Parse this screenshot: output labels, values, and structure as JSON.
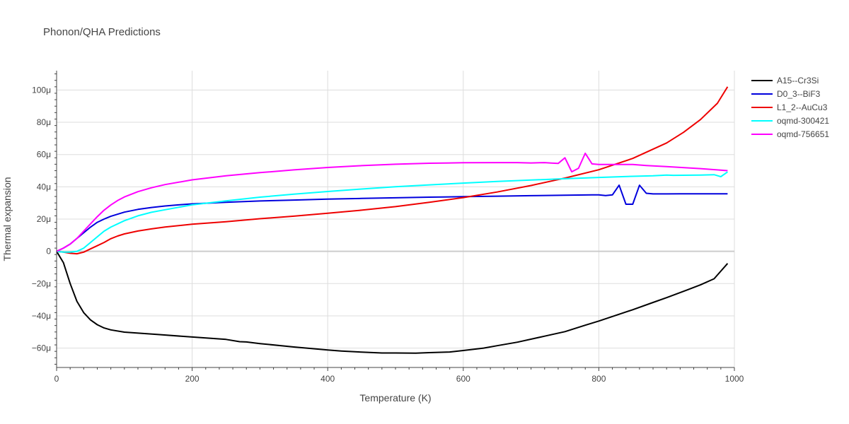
{
  "chart_data": {
    "type": "line",
    "title": "Phonon/QHA Predictions",
    "xlabel": "Temperature (K)",
    "ylabel": "Thermal expansion",
    "xlim": [
      0,
      1000
    ],
    "ylim": [
      -72,
      112
    ],
    "y_unit_suffix": "μ",
    "x_ticks": [
      0,
      200,
      400,
      600,
      800,
      1000
    ],
    "y_ticks": [
      -60,
      -40,
      -20,
      0,
      20,
      40,
      60,
      80,
      100
    ],
    "grid": true,
    "legend_position": "top-right",
    "series": [
      {
        "name": "A15--Cr3Si",
        "color": "#000000",
        "points": [
          [
            0,
            0
          ],
          [
            10,
            -7
          ],
          [
            20,
            -20
          ],
          [
            30,
            -31
          ],
          [
            40,
            -38
          ],
          [
            50,
            -42.5
          ],
          [
            60,
            -45.5
          ],
          [
            70,
            -47.5
          ],
          [
            80,
            -48.7
          ],
          [
            100,
            -50.1
          ],
          [
            150,
            -51.6
          ],
          [
            200,
            -53.1
          ],
          [
            250,
            -54.6
          ],
          [
            270,
            -56
          ],
          [
            280,
            -56.2
          ],
          [
            300,
            -57.2
          ],
          [
            350,
            -59.3
          ],
          [
            400,
            -61.2
          ],
          [
            420,
            -61.8
          ],
          [
            450,
            -62.5
          ],
          [
            480,
            -63
          ],
          [
            500,
            -63
          ],
          [
            530,
            -63.1
          ],
          [
            550,
            -62.8
          ],
          [
            580,
            -62.4
          ],
          [
            600,
            -61.5
          ],
          [
            630,
            -60
          ],
          [
            650,
            -58.5
          ],
          [
            680,
            -56.3
          ],
          [
            720,
            -52.6
          ],
          [
            750,
            -49.8
          ],
          [
            780,
            -45.8
          ],
          [
            800,
            -43.2
          ],
          [
            830,
            -39
          ],
          [
            850,
            -36.2
          ],
          [
            880,
            -31.7
          ],
          [
            900,
            -28.7
          ],
          [
            930,
            -24
          ],
          [
            950,
            -20.8
          ],
          [
            970,
            -17
          ],
          [
            990,
            -7.5
          ]
        ]
      },
      {
        "name": "D0_3--BiF3",
        "color": "#0000dd",
        "points": [
          [
            0,
            0
          ],
          [
            10,
            2
          ],
          [
            20,
            4.5
          ],
          [
            30,
            8
          ],
          [
            40,
            11.5
          ],
          [
            50,
            15
          ],
          [
            60,
            18
          ],
          [
            70,
            20
          ],
          [
            80,
            21.7
          ],
          [
            100,
            24.3
          ],
          [
            120,
            26
          ],
          [
            140,
            27.2
          ],
          [
            160,
            28.1
          ],
          [
            180,
            28.8
          ],
          [
            200,
            29.4
          ],
          [
            250,
            30.4
          ],
          [
            300,
            31.2
          ],
          [
            350,
            31.8
          ],
          [
            400,
            32.4
          ],
          [
            450,
            32.8
          ],
          [
            500,
            33.2
          ],
          [
            550,
            33.6
          ],
          [
            600,
            33.9
          ],
          [
            650,
            34.2
          ],
          [
            700,
            34.5
          ],
          [
            750,
            34.8
          ],
          [
            790,
            35
          ],
          [
            800,
            35
          ],
          [
            810,
            34.6
          ],
          [
            820,
            35
          ],
          [
            830,
            41
          ],
          [
            840,
            29.2
          ],
          [
            850,
            29.2
          ],
          [
            860,
            41
          ],
          [
            870,
            36
          ],
          [
            880,
            35.6
          ],
          [
            900,
            35.6
          ],
          [
            920,
            35.7
          ],
          [
            950,
            35.7
          ],
          [
            990,
            35.7
          ]
        ]
      },
      {
        "name": "L1_2--AuCu3",
        "color": "#ee0000",
        "points": [
          [
            0,
            0
          ],
          [
            10,
            -0.5
          ],
          [
            20,
            -1.2
          ],
          [
            30,
            -1.5
          ],
          [
            40,
            -0.5
          ],
          [
            50,
            1.5
          ],
          [
            60,
            3.5
          ],
          [
            70,
            5.5
          ],
          [
            80,
            7.8
          ],
          [
            90,
            9.5
          ],
          [
            100,
            10.8
          ],
          [
            120,
            12.6
          ],
          [
            140,
            13.9
          ],
          [
            160,
            15.1
          ],
          [
            200,
            16.8
          ],
          [
            250,
            18.4
          ],
          [
            300,
            20.2
          ],
          [
            350,
            21.8
          ],
          [
            400,
            23.6
          ],
          [
            450,
            25.5
          ],
          [
            500,
            27.7
          ],
          [
            550,
            30.4
          ],
          [
            600,
            33.3
          ],
          [
            650,
            36.8
          ],
          [
            700,
            40.8
          ],
          [
            750,
            45.4
          ],
          [
            800,
            50.6
          ],
          [
            850,
            57.6
          ],
          [
            900,
            67.2
          ],
          [
            925,
            73.8
          ],
          [
            950,
            81.7
          ],
          [
            975,
            91.8
          ],
          [
            990,
            102
          ]
        ]
      },
      {
        "name": "oqmd-300421",
        "color": "#00ffff",
        "points": [
          [
            0,
            0
          ],
          [
            10,
            -0.5
          ],
          [
            20,
            -0.5
          ],
          [
            30,
            0
          ],
          [
            40,
            2
          ],
          [
            50,
            5.5
          ],
          [
            60,
            9
          ],
          [
            70,
            12.5
          ],
          [
            80,
            15
          ],
          [
            100,
            19
          ],
          [
            120,
            22
          ],
          [
            140,
            24.2
          ],
          [
            160,
            25.8
          ],
          [
            200,
            28.8
          ],
          [
            250,
            31.3
          ],
          [
            300,
            33.6
          ],
          [
            350,
            35.4
          ],
          [
            400,
            37.1
          ],
          [
            450,
            38.6
          ],
          [
            500,
            40
          ],
          [
            550,
            41.2
          ],
          [
            600,
            42.3
          ],
          [
            650,
            43.3
          ],
          [
            700,
            44.2
          ],
          [
            750,
            45
          ],
          [
            800,
            45.8
          ],
          [
            850,
            46.5
          ],
          [
            880,
            46.8
          ],
          [
            900,
            47.3
          ],
          [
            910,
            47.1
          ],
          [
            950,
            47.3
          ],
          [
            970,
            47.5
          ],
          [
            980,
            46.3
          ],
          [
            990,
            49.2
          ]
        ]
      },
      {
        "name": "oqmd-756651",
        "color": "#ff00ff",
        "points": [
          [
            0,
            0
          ],
          [
            10,
            2
          ],
          [
            20,
            4.5
          ],
          [
            30,
            8
          ],
          [
            40,
            12.5
          ],
          [
            50,
            17
          ],
          [
            60,
            21.5
          ],
          [
            70,
            25.5
          ],
          [
            80,
            28.7
          ],
          [
            90,
            31.5
          ],
          [
            100,
            33.7
          ],
          [
            120,
            37
          ],
          [
            140,
            39.4
          ],
          [
            160,
            41.4
          ],
          [
            200,
            44.3
          ],
          [
            250,
            46.8
          ],
          [
            300,
            48.8
          ],
          [
            350,
            50.5
          ],
          [
            400,
            52
          ],
          [
            450,
            53.1
          ],
          [
            500,
            54
          ],
          [
            550,
            54.6
          ],
          [
            600,
            54.9
          ],
          [
            650,
            55
          ],
          [
            680,
            55
          ],
          [
            700,
            54.8
          ],
          [
            720,
            55
          ],
          [
            730,
            54.7
          ],
          [
            740,
            54.5
          ],
          [
            750,
            58
          ],
          [
            760,
            49.3
          ],
          [
            770,
            51.5
          ],
          [
            780,
            60.8
          ],
          [
            790,
            54.2
          ],
          [
            800,
            53.8
          ],
          [
            850,
            53.8
          ],
          [
            870,
            53.2
          ],
          [
            900,
            52.5
          ],
          [
            950,
            51.3
          ],
          [
            990,
            50
          ]
        ]
      }
    ]
  }
}
